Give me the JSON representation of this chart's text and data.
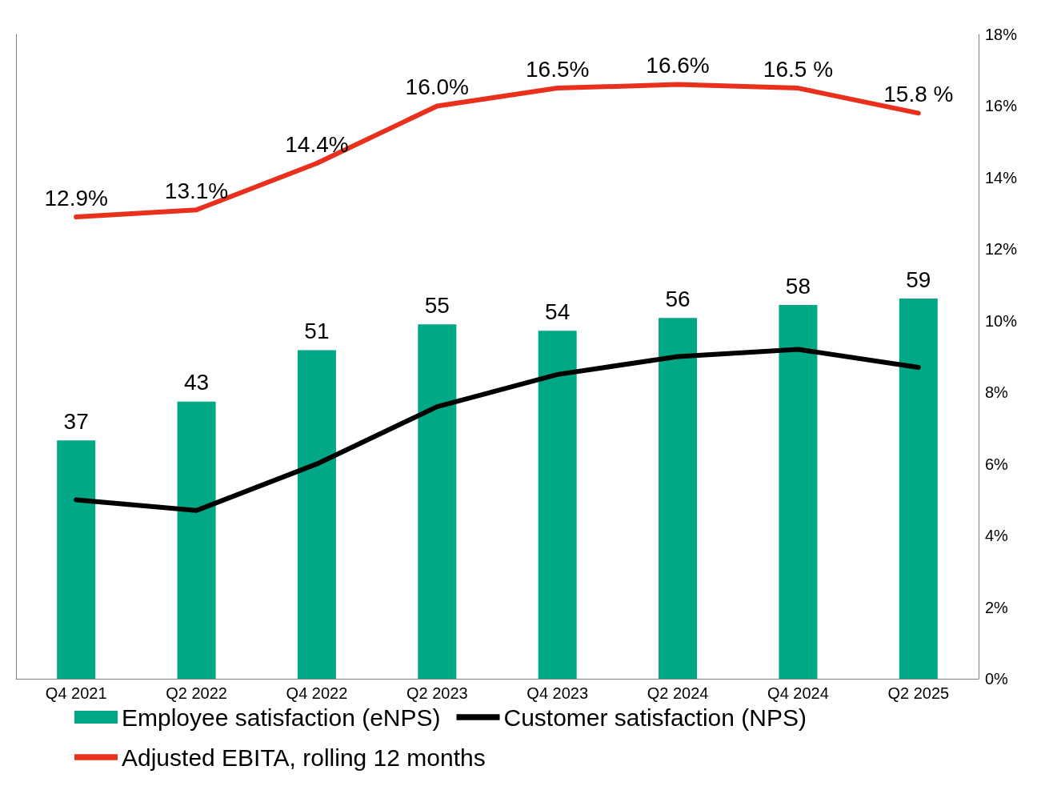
{
  "chart_data": {
    "type": "bar",
    "categories": [
      "Q4 2021",
      "Q2 2022",
      "Q4 2022",
      "Q2 2023",
      "Q4 2023",
      "Q2 2024",
      "Q4 2024",
      "Q2 2025"
    ],
    "series": [
      {
        "name": "Employee satisfaction (eNPS)",
        "color": "#00a886",
        "values": [
          37,
          43,
          51,
          55,
          54,
          56,
          58,
          59
        ],
        "value_labels": [
          "37",
          "43",
          "51",
          "55",
          "54",
          "56",
          "58",
          "59"
        ]
      },
      {
        "name": "Customer satisfaction (NPS)",
        "type": "line",
        "axis": "y2",
        "color": "#000000",
        "values": [
          5.0,
          4.7,
          6.0,
          7.6,
          8.5,
          9.0,
          9.2,
          8.7
        ]
      },
      {
        "name": "Adjusted EBITA, rolling 12 months",
        "type": "line",
        "axis": "y2",
        "color": "#e8301c",
        "values": [
          12.9,
          13.1,
          14.4,
          16.0,
          16.5,
          16.6,
          16.5,
          15.8
        ],
        "value_labels": [
          "12.9%",
          "13.1%",
          "14.4%",
          "16.0%",
          "16.5%",
          "16.6%",
          "16.5 %",
          "15.8 %"
        ]
      }
    ],
    "ylim": [
      0,
      100
    ],
    "y2lim": [
      0,
      18
    ],
    "y2ticks": [
      {
        "value": 0,
        "label": "0%"
      },
      {
        "value": 2,
        "label": "2%"
      },
      {
        "value": 4,
        "label": "4%"
      },
      {
        "value": 6,
        "label": "6%"
      },
      {
        "value": 8,
        "label": "8%"
      },
      {
        "value": 10,
        "label": "10%"
      },
      {
        "value": 12,
        "label": "12%"
      },
      {
        "value": 14,
        "label": "14%"
      },
      {
        "value": 16,
        "label": "16%"
      },
      {
        "value": 18,
        "label": "18%"
      }
    ],
    "tick_labels": [
      "x",
      "y2"
    ],
    "marker": "none",
    "legend": "bottom",
    "grid": false
  }
}
